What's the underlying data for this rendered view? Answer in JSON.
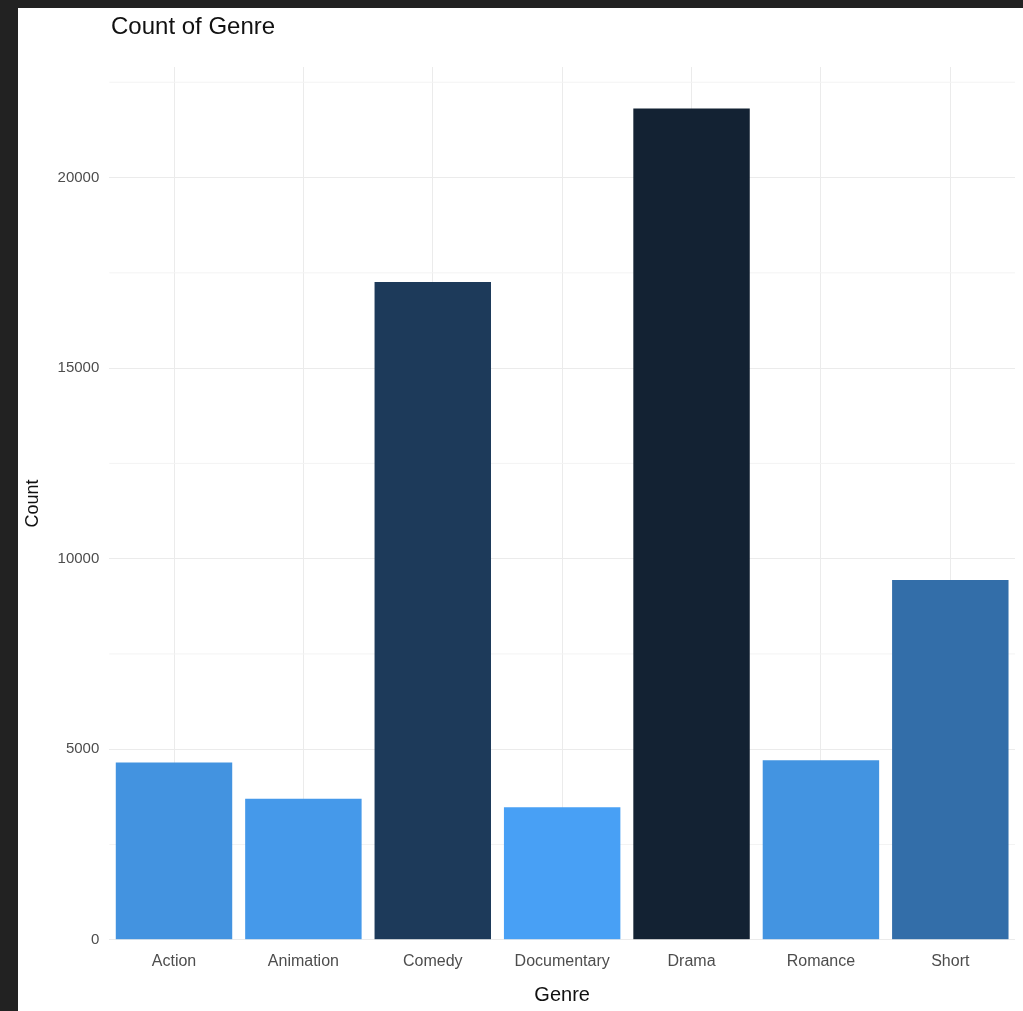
{
  "chart_data": {
    "type": "bar",
    "title": "Count of Genre",
    "xlabel": "Genre",
    "ylabel": "Count",
    "categories": [
      "Action",
      "Animation",
      "Comedy",
      "Documentary",
      "Drama",
      "Romance",
      "Short"
    ],
    "values": [
      4650,
      3700,
      17260,
      3480,
      21810,
      4710,
      9440
    ],
    "colors": [
      "#4393e0",
      "#4599ea",
      "#1d3a5a",
      "#48a0f5",
      "#132233",
      "#4394e1",
      "#336ea9"
    ],
    "ylim": [
      0,
      22900
    ],
    "yticks": [
      0,
      5000,
      10000,
      15000,
      20000
    ],
    "grid": true,
    "legend": false
  }
}
